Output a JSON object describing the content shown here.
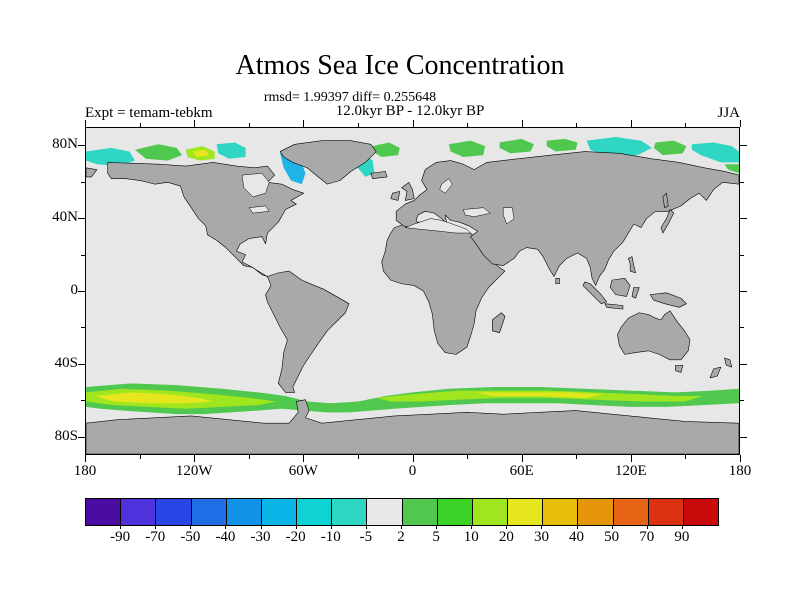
{
  "header": {
    "title": "Atmos Sea Ice Concentration",
    "stats": "rmsd= 1.99397 diff= 0.255648",
    "period": "12.0kyr BP - 12.0kyr BP",
    "experiment": "Expt = temam-tebkm",
    "season": "JJA"
  },
  "colors": {
    "land": "#a9a9a9",
    "ocean": "#e7e7e7",
    "frame": "#000000",
    "ice_neg_cyan": "#1fb4e6",
    "ice_neg_turquoise": "#2fd6c3",
    "ice_pos_green": "#50c850",
    "ice_pos_yellowgreen": "#a0e61e",
    "ice_pos_yellow": "#e6e61e"
  },
  "chart_data": {
    "type": "heatmap",
    "title": "Atmos Sea Ice Concentration",
    "subtitle_stats": "rmsd= 1.99397 diff= 0.255648",
    "subtitle_period": "12.0kyr BP - 12.0kyr BP",
    "experiment_label": "Expt = temam-tebkm",
    "season_label": "JJA",
    "projection": "equirectangular world map, lon -180..180, lat -90..90",
    "axes": {
      "lat_ticks": [
        {
          "label": "80N",
          "value": 80
        },
        {
          "label": "40N",
          "value": 40
        },
        {
          "label": "0",
          "value": 0
        },
        {
          "label": "40S",
          "value": -40
        },
        {
          "label": "80S",
          "value": -80
        }
      ],
      "lat_minor": [
        60,
        20,
        -20,
        -60
      ],
      "lon_ticks": [
        {
          "label": "180",
          "value": -180
        },
        {
          "label": "120W",
          "value": -120
        },
        {
          "label": "60W",
          "value": -60
        },
        {
          "label": "0",
          "value": 0
        },
        {
          "label": "60E",
          "value": 60
        },
        {
          "label": "120E",
          "value": 120
        },
        {
          "label": "180",
          "value": 180
        }
      ],
      "lon_minor": [
        -150,
        -90,
        -30,
        30,
        90,
        150
      ],
      "lon_range": [
        -180,
        180
      ],
      "lat_range": [
        -90,
        90
      ]
    },
    "colorbar": {
      "levels": [
        -90,
        -70,
        -50,
        -40,
        -30,
        -20,
        -10,
        -5,
        2,
        5,
        10,
        20,
        30,
        40,
        50,
        70,
        90
      ],
      "colors": [
        "#4c0ca0",
        "#5032dc",
        "#2846e6",
        "#1e6ee6",
        "#1292e6",
        "#0ab4e6",
        "#0fd2d2",
        "#2fd6c3",
        "#e7e7e7",
        "#50c850",
        "#3cd228",
        "#a0e61e",
        "#e6e61e",
        "#e6be0a",
        "#e6960a",
        "#e66414",
        "#dc3214",
        "#c80a0a"
      ],
      "orientation": "horizontal"
    },
    "anomaly_regions": {
      "northern_hemisphere": "Patches along Arctic coasts near 70-80N: negative (cyan/turquoise, -5 to -20) over Beaufort Sea, Baffin Bay, East Greenland, East Siberian Sea and Bering side; positive (green to yellow, 2 to 30) over Canadian Archipelago, north of Iceland, Barents, Kara, Laptev and Chukchi seas",
      "southern_hemisphere": "Continuous circumpolar band of positive anomalies (green, yellow-green, yellow; ~2 to 30) around Antarctica near 55-65S",
      "background": "Near-zero difference (-5 to 2) shown as light gray over open ocean"
    }
  }
}
